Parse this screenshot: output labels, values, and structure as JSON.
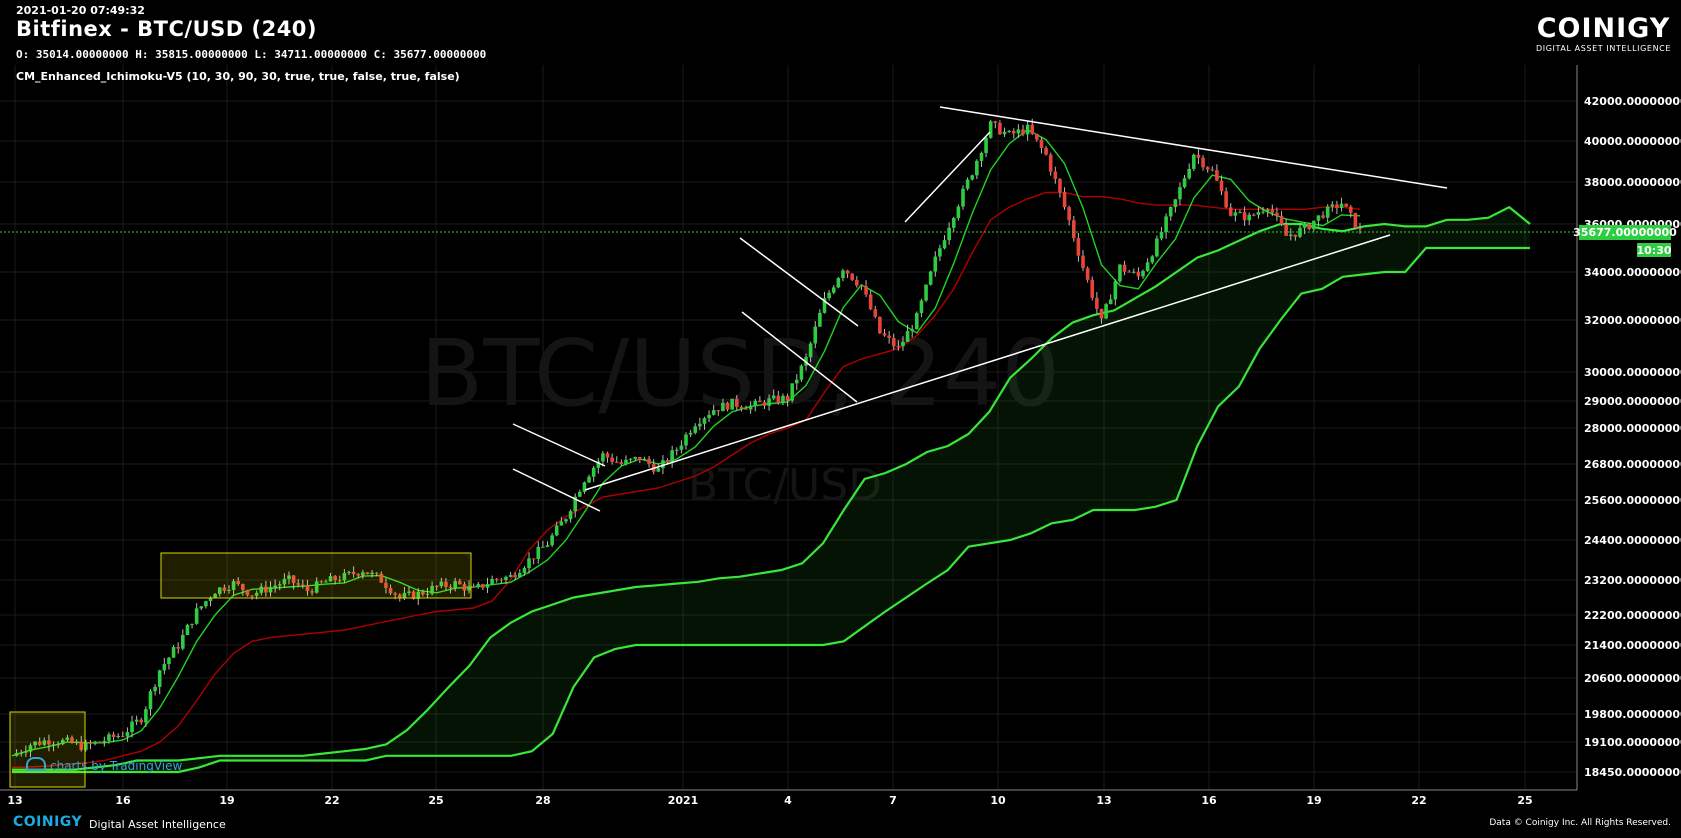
{
  "header": {
    "timestamp": "2021-01-20 07:49:32",
    "title": "Bitfinex - BTC/USD (240)",
    "ohlc": "O: 35014.00000000 H: 35815.00000000 L: 34711.00000000 C: 35677.00000000",
    "indicator": "CM_Enhanced_Ichimoku-V5 (10, 30, 90, 30, true, true, false, true, false)"
  },
  "brand": {
    "name": "COINIGY",
    "tagline": "DIGITAL ASSET INTELLIGENCE"
  },
  "footer": {
    "logo": "COINIGY",
    "tagline": "Digital Asset Intelligence",
    "copyright": "Data © Coinigy Inc.  All Rights Reserved."
  },
  "tradingview": "charts by TradingView",
  "watermark": {
    "main": "BTC/USD, 240",
    "sub": "BTC/USD"
  },
  "colors": {
    "background": "#000000",
    "up": "#2ecc40",
    "down": "#e8443a",
    "kijun": "#b00000",
    "tenkan": "#1fd41f",
    "cloud": "#39e639",
    "trendline": "#ffffff",
    "current_price": "#2ecc40"
  },
  "chart_data": {
    "type": "candlestick",
    "x_ticks": [
      "13",
      "16",
      "19",
      "22",
      "25",
      "28",
      "2021",
      "4",
      "7",
      "10",
      "13",
      "16",
      "19",
      "22",
      "25"
    ],
    "y_ticks": [
      "42000.00000000",
      "40000.00000000",
      "38000.00000000",
      "36000.00000000",
      "34000.00000000",
      "32000.00000000",
      "30000.00000000",
      "29000.00000000",
      "28000.00000000",
      "26800.00000000",
      "25600.00000000",
      "24400.00000000",
      "23200.00000000",
      "22200.00000000",
      "21400.00000000",
      "20600.00000000",
      "19800.00000000",
      "19100.00000000",
      "18450.00000000"
    ],
    "current_price": "35677.00000000",
    "countdown": "10:30",
    "close_series": [
      18800,
      19050,
      19150,
      19100,
      19000,
      19150,
      19300,
      19700,
      20800,
      21400,
      22300,
      22900,
      23100,
      22800,
      23000,
      23200,
      22900,
      23150,
      23300,
      23500,
      23200,
      22700,
      22800,
      23000,
      23100,
      22900,
      23200,
      23300,
      23800,
      24300,
      25100,
      26300,
      27100,
      26800,
      27000,
      26600,
      27300,
      28200,
      28700,
      28900,
      28800,
      29000,
      29100,
      30500,
      32800,
      34200,
      33400,
      31500,
      30900,
      32100,
      34500,
      36500,
      38500,
      40800,
      40300,
      40600,
      39300,
      36800,
      34200,
      31900,
      34200,
      33800,
      35200,
      37100,
      39400,
      38500,
      36500,
      36300,
      36900,
      35500,
      35800,
      36500,
      37000,
      35677
    ],
    "kijun_series": [
      18550,
      18560,
      18580,
      18620,
      18650,
      18700,
      18800,
      18900,
      19100,
      19500,
      20100,
      20700,
      21200,
      21500,
      21600,
      21650,
      21700,
      21750,
      21800,
      21900,
      22000,
      22100,
      22200,
      22300,
      22350,
      22400,
      22600,
      23200,
      24100,
      24700,
      25100,
      25400,
      25700,
      25800,
      25900,
      26000,
      26200,
      26400,
      26700,
      27100,
      27500,
      27800,
      28000,
      28300,
      29300,
      30200,
      30500,
      30700,
      30900,
      31400,
      32200,
      33300,
      34800,
      36200,
      36800,
      37200,
      37500,
      37500,
      37300,
      37300,
      37200,
      37000,
      36900,
      36900,
      36900,
      36800,
      36700,
      36700,
      36700,
      36700,
      36700,
      36800,
      36800,
      36700
    ],
    "span_a_series": [
      18500,
      18500,
      18500,
      18500,
      18550,
      18600,
      18700,
      18700,
      18700,
      18750,
      18800,
      18800,
      18800,
      18800,
      18800,
      18850,
      18900,
      18950,
      19050,
      19400,
      19900,
      20400,
      20900,
      21600,
      22000,
      22300,
      22500,
      22700,
      22800,
      22900,
      23000,
      23050,
      23100,
      23150,
      23250,
      23300,
      23400,
      23500,
      23700,
      24300,
      25300,
      26300,
      26500,
      26800,
      27200,
      27400,
      27800,
      28600,
      29800,
      30500,
      31300,
      31900,
      32200,
      32400,
      32900,
      33400,
      34000,
      34600,
      34900,
      35300,
      35700,
      36000,
      36000,
      35800,
      35700,
      35900,
      36000,
      35900,
      35900,
      36200,
      36200,
      36300,
      36800,
      36000
    ],
    "span_b_series": [
      18450,
      18450,
      18450,
      18450,
      18450,
      18450,
      18450,
      18450,
      18450,
      18550,
      18700,
      18700,
      18700,
      18700,
      18700,
      18700,
      18700,
      18700,
      18800,
      18800,
      18800,
      18800,
      18800,
      18800,
      18800,
      18900,
      19300,
      20400,
      21100,
      21300,
      21400,
      21400,
      21400,
      21400,
      21400,
      21400,
      21400,
      21400,
      21400,
      21400,
      21500,
      21900,
      22300,
      22700,
      23100,
      23500,
      24200,
      24300,
      24400,
      24600,
      24900,
      25000,
      25300,
      25300,
      25300,
      25400,
      25600,
      27400,
      28800,
      29500,
      30900,
      32000,
      33100,
      33300,
      33800,
      33900,
      34000,
      34000,
      35000,
      35000,
      35000,
      35000,
      35000,
      35000
    ]
  }
}
